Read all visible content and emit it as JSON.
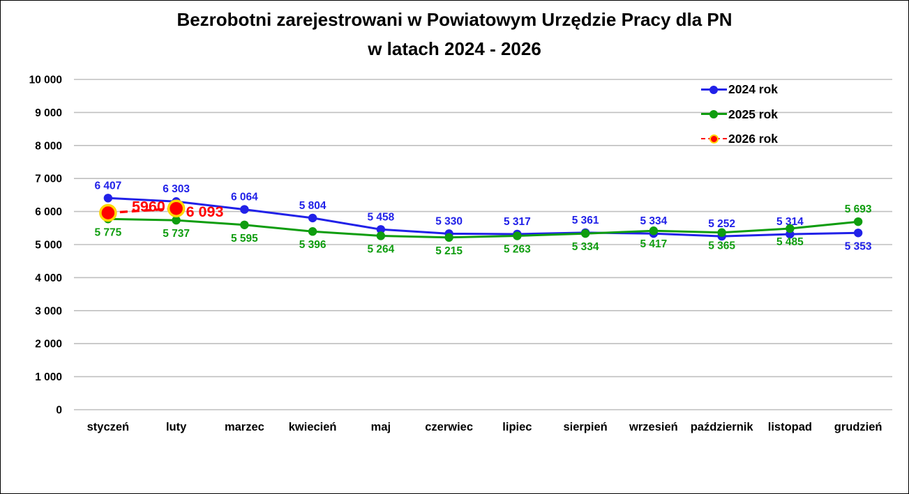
{
  "title": {
    "line1": "Bezrobotni zarejestrowani w Powiatowym Urzędzie Pracy dla PN",
    "line2": "w latach 2024 - 2026"
  },
  "chart_data": {
    "type": "line",
    "title": "Bezrobotni zarejestrowani w Powiatowym Urzędzie Pracy dla PN w latach 2024 - 2026",
    "categories": [
      "styczeń",
      "luty",
      "marzec",
      "kwiecień",
      "maj",
      "czerwiec",
      "lipiec",
      "sierpień",
      "wrzesień",
      "październik",
      "listopad",
      "grudzień"
    ],
    "series": [
      {
        "name": "2024 rok",
        "color": "#2121E8",
        "line_style": "solid",
        "marker": "circle",
        "values": [
          6407,
          6303,
          6064,
          5804,
          5458,
          5330,
          5317,
          5361,
          5334,
          5252,
          5314,
          5353
        ],
        "labels": [
          "6 407",
          "6 303",
          "6 064",
          "5 804",
          "5 458",
          "5 330",
          "5 317",
          "5 361",
          "5 334",
          "5 252",
          "5 314",
          "5 353"
        ],
        "label_sides": [
          "above",
          "above",
          "above",
          "above",
          "above",
          "above",
          "above",
          "above",
          "above",
          "above",
          "above",
          "below"
        ]
      },
      {
        "name": "2025 rok",
        "color": "#0F9D0F",
        "line_style": "solid",
        "marker": "circle",
        "values": [
          5775,
          5737,
          5595,
          5396,
          5264,
          5215,
          5263,
          5334,
          5417,
          5365,
          5485,
          5693
        ],
        "labels": [
          "5 775",
          "5 737",
          "5 595",
          "5 396",
          "5 264",
          "5 215",
          "5 263",
          "5 334",
          "5 417",
          "5 365",
          "5 485",
          "5 693"
        ],
        "label_sides": [
          "below",
          "below",
          "below",
          "below",
          "below",
          "below",
          "below",
          "below",
          "below",
          "below",
          "below",
          "above"
        ]
      },
      {
        "name": "2026 rok",
        "color": "#FF0000",
        "marker_ring_color": "#FFD700",
        "line_style": "dashed",
        "marker": "circle-large",
        "label_size": "large",
        "values": [
          5960,
          6093,
          null,
          null,
          null,
          null,
          null,
          null,
          null,
          null,
          null,
          null
        ],
        "labels": [
          "5960",
          "6 093",
          "",
          "",
          "",
          "",
          "",
          "",
          "",
          "",
          "",
          ""
        ],
        "label_sides": [
          "float-mid",
          "float-right",
          "",
          "",
          "",
          "",
          "",
          "",
          "",
          "",
          "",
          ""
        ]
      }
    ],
    "ylim": [
      0,
      10000
    ],
    "ytick_step": 1000,
    "ytick_labels": [
      "0",
      "1 000",
      "2 000",
      "3 000",
      "4 000",
      "5 000",
      "6 000",
      "7 000",
      "8 000",
      "9 000",
      "10 000"
    ],
    "xlabel": "",
    "ylabel": "",
    "grid": true,
    "gridline_color": "#BFBFBF",
    "legend_position": "top-right"
  }
}
